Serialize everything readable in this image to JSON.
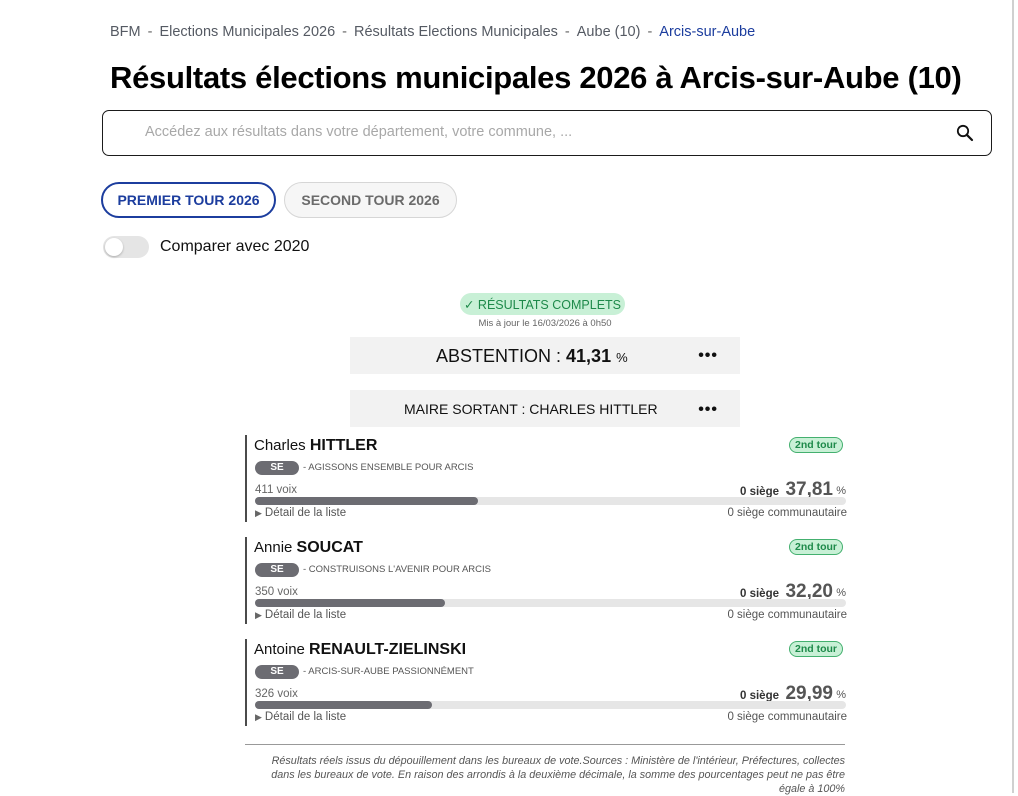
{
  "breadcrumb": [
    "BFM",
    "Elections Municipales 2026",
    "Résultats Elections Municipales",
    "Aube (10)",
    "Arcis-sur-Aube"
  ],
  "page_title": "Résultats élections municipales 2026 à Arcis-sur-Aube (10)",
  "search": {
    "placeholder": "Accédez aux résultats dans votre département, votre commune, ...",
    "icon": "search-icon"
  },
  "tabs": [
    {
      "label": "PREMIER TOUR 2026",
      "active": true
    },
    {
      "label": "SECOND TOUR 2026",
      "active": false
    }
  ],
  "compare_toggle": {
    "label": "Comparer avec 2020",
    "on": false
  },
  "status": {
    "badge": "✓ RÉSULTATS COMPLETS",
    "updated": "Mis à jour le 16/03/2026 à 0h50"
  },
  "abstention": {
    "label": "ABSTENTION : ",
    "value": "41,31",
    "unit": "%",
    "more": "•••"
  },
  "mayor": {
    "label": "MAIRE SORTANT : CHARLES HITTLER",
    "more": "•••"
  },
  "candidates": [
    {
      "first": "Charles",
      "last": "HITTLER",
      "badge": "2nd tour",
      "party": "SE",
      "list": "- AGISSONS ENSEMBLE POUR ARCIS",
      "voix": "411 voix",
      "siege": "0 siège",
      "score": "37,81",
      "score_value": 37.81,
      "pct": "%",
      "detail": "Détail de la liste",
      "communautaire": "0 siège communautaire"
    },
    {
      "first": "Annie",
      "last": "SOUCAT",
      "badge": "2nd tour",
      "party": "SE",
      "list": "- CONSTRUISONS L'AVENIR POUR ARCIS",
      "voix": "350 voix",
      "siege": "0 siège",
      "score": "32,20",
      "score_value": 32.2,
      "pct": "%",
      "detail": "Détail de la liste",
      "communautaire": "0 siège communautaire"
    },
    {
      "first": "Antoine",
      "last": "RENAULT-ZIELINSKI",
      "badge": "2nd tour",
      "party": "SE",
      "list": "- ARCIS-SUR-AUBE PASSIONNÉMENT",
      "voix": "326 voix",
      "siege": "0 siège",
      "score": "29,99",
      "score_value": 29.99,
      "pct": "%",
      "detail": "Détail de la liste",
      "communautaire": "0 siège communautaire"
    }
  ],
  "footnote": "Résultats réels issus du dépouillement dans les bureaux de vote.Sources : Ministère de l'intérieur, Préfectures, collectes dans les bureaux de vote. En raison des arrondis à la deuxième décimale, la somme des pourcentages peut ne pas être égale à 100%",
  "colors": {
    "accent": "#1c3d9e",
    "success_bg": "#c8f0d6",
    "success_text": "#1e8a4a",
    "bar": "#6c6c72"
  }
}
